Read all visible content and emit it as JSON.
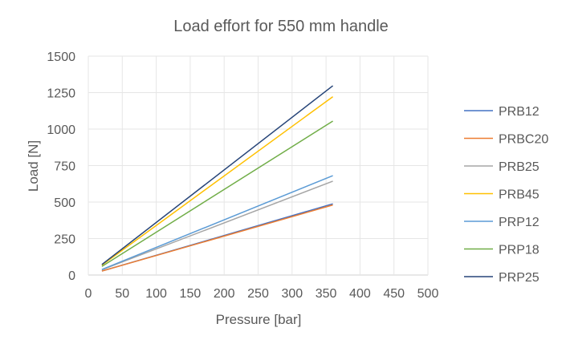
{
  "chart_data": {
    "type": "line",
    "title": "Load effort for 550 mm handle",
    "xlabel": "Pressure [bar]",
    "ylabel": "Load [N]",
    "xlim": [
      0,
      500
    ],
    "ylim": [
      0,
      1500
    ],
    "xticks": [
      0,
      50,
      100,
      150,
      200,
      250,
      300,
      350,
      400,
      450,
      500
    ],
    "yticks": [
      0,
      250,
      500,
      750,
      1000,
      1250,
      1500
    ],
    "grid": true,
    "legend_position": "right",
    "x": [
      20,
      360
    ],
    "series": [
      {
        "name": "PRB12",
        "color": "#4472C4",
        "values": [
          27,
          488
        ]
      },
      {
        "name": "PRBC20",
        "color": "#ED7D31",
        "values": [
          27,
          480
        ]
      },
      {
        "name": "PRB25",
        "color": "#A5A5A5",
        "values": [
          36,
          643
        ]
      },
      {
        "name": "PRB45",
        "color": "#FFC000",
        "values": [
          68,
          1222
        ]
      },
      {
        "name": "PRP12",
        "color": "#5B9BD5",
        "values": [
          38,
          681
        ]
      },
      {
        "name": "PRP18",
        "color": "#70AD47",
        "values": [
          59,
          1055
        ]
      },
      {
        "name": "PRP25",
        "color": "#264478",
        "values": [
          72,
          1297
        ]
      }
    ]
  }
}
